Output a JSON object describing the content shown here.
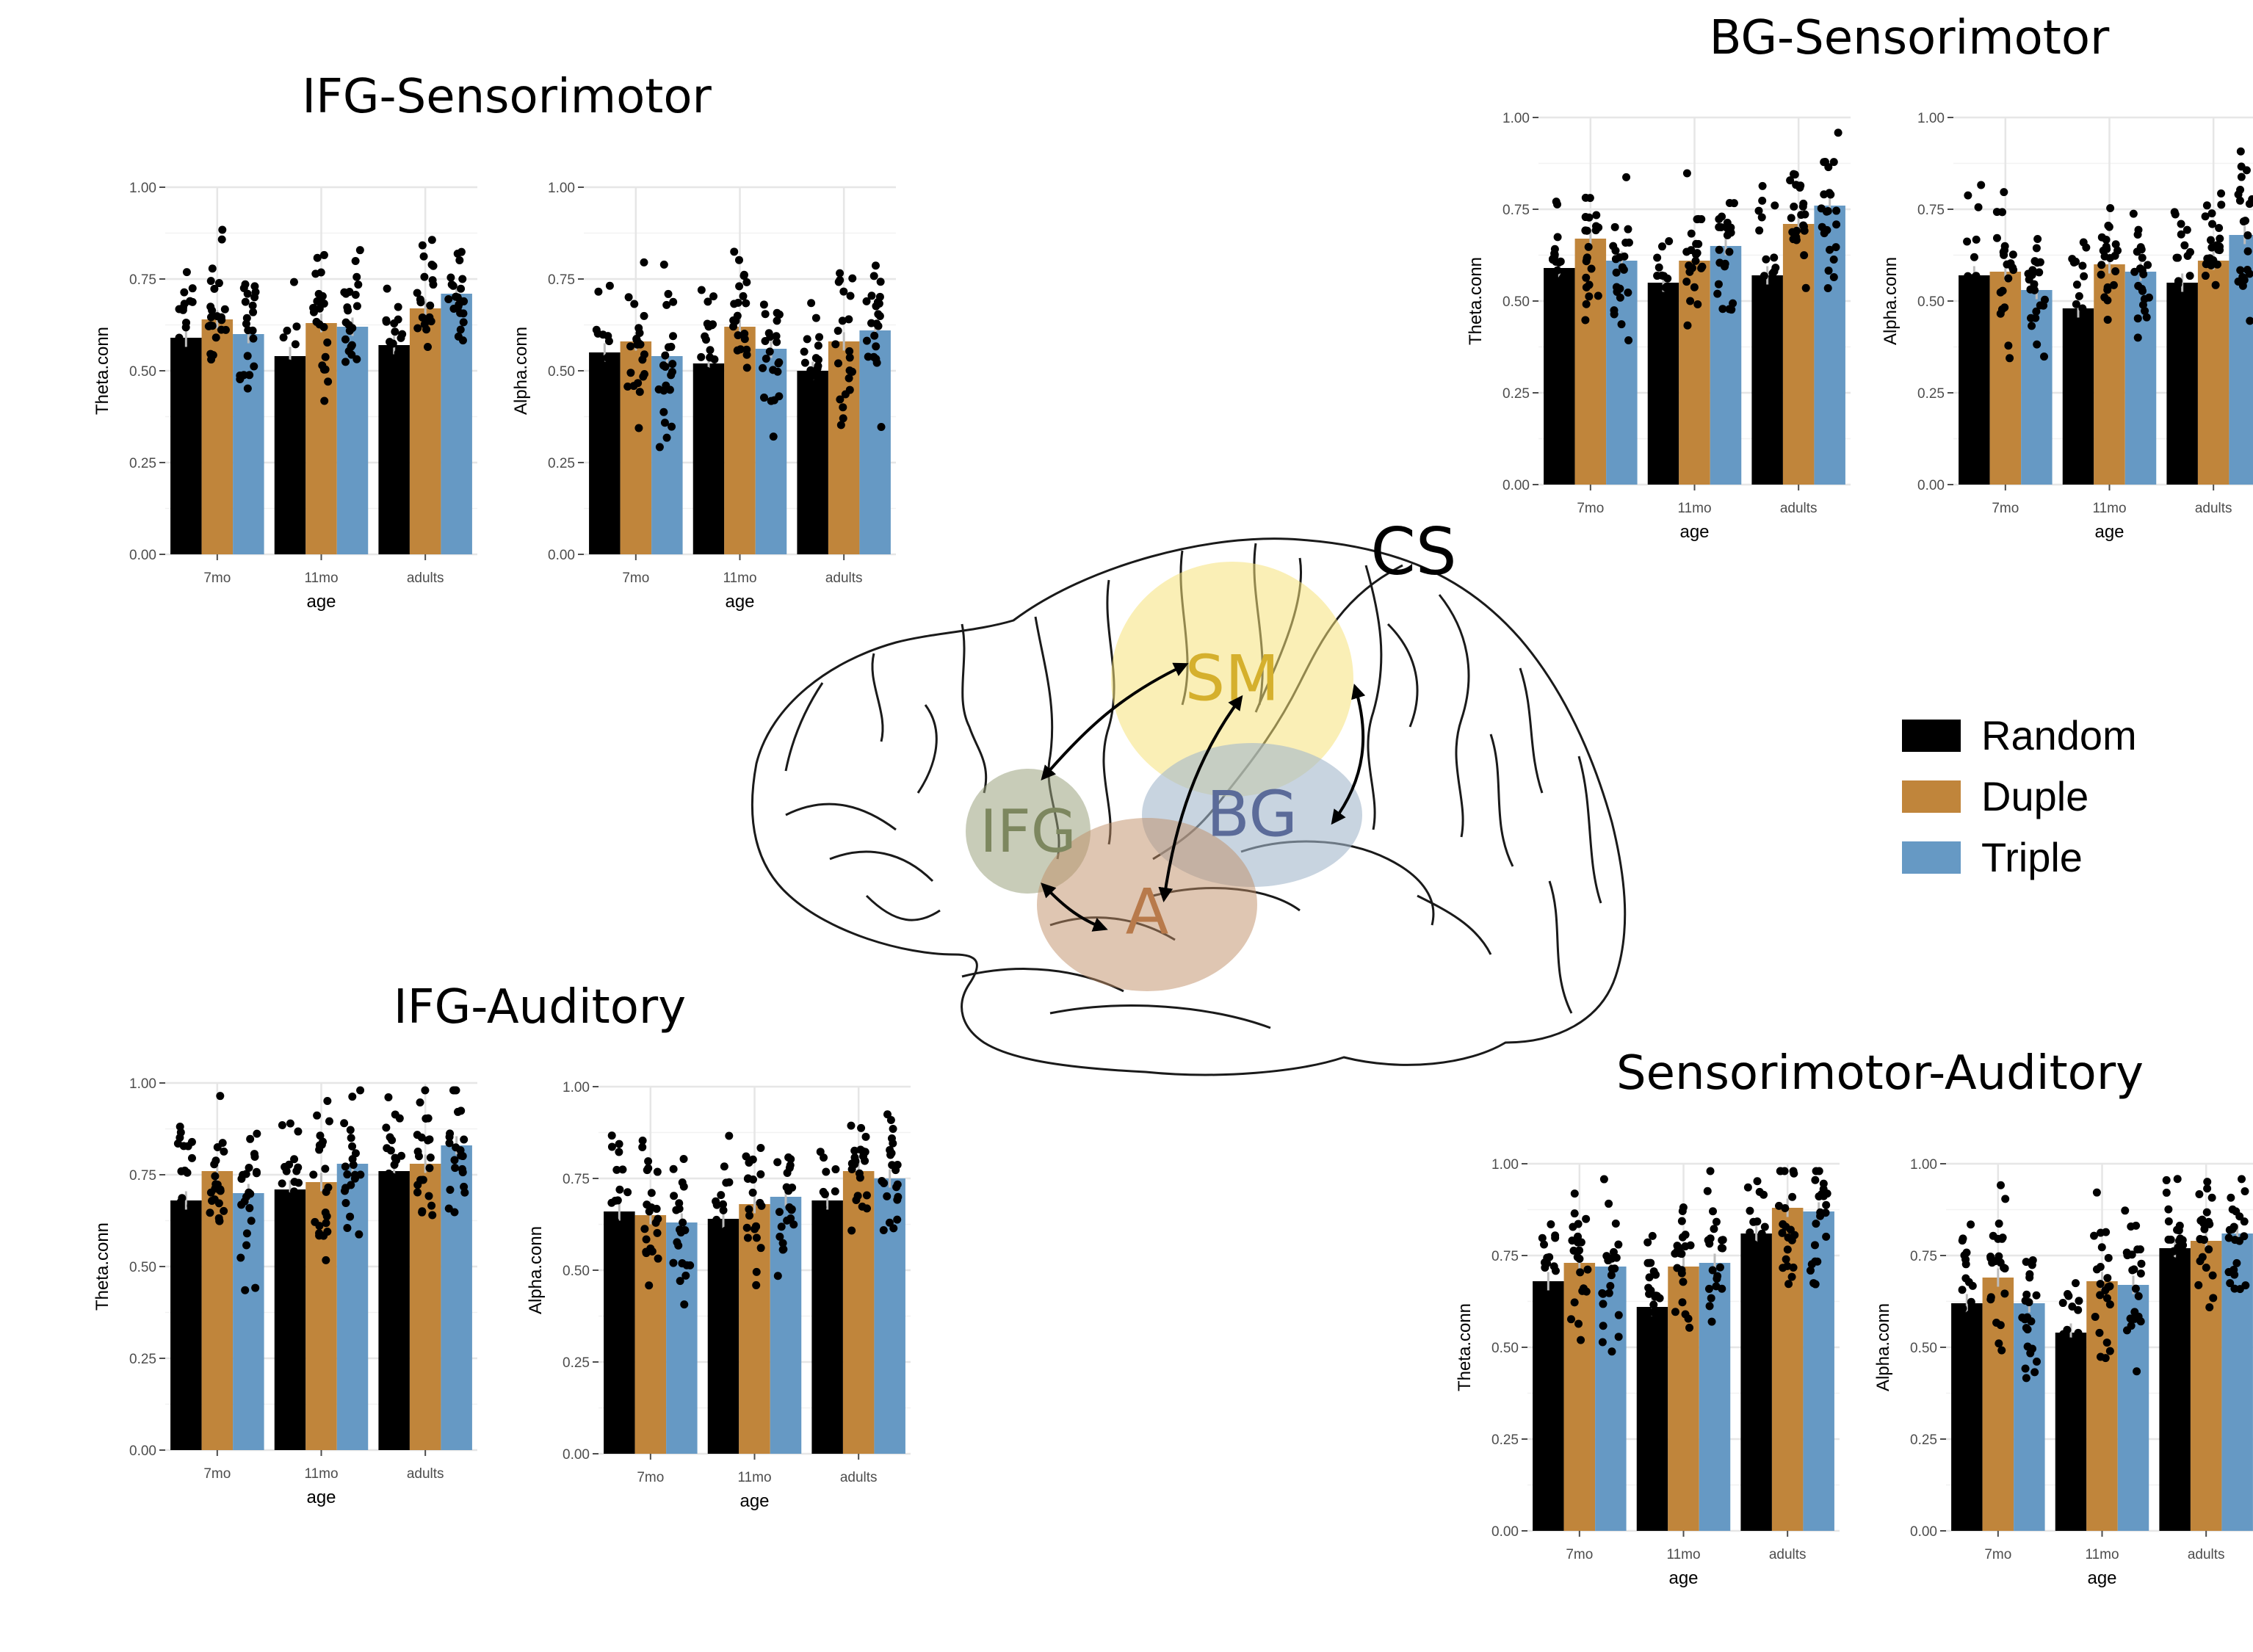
{
  "groups": [
    {
      "title": "IFG-Sensorimotor"
    },
    {
      "title": "BG-Sensorimotor"
    },
    {
      "title": "IFG-Auditory"
    },
    {
      "title": "Sensorimotor-Auditory"
    }
  ],
  "brain": {
    "cs_label": "CS",
    "regions": {
      "sm": "SM",
      "bg": "BG",
      "ifg": "IFG",
      "a": "A"
    }
  },
  "legend": [
    {
      "label": "Random",
      "color": "#000000"
    },
    {
      "label": "Duple",
      "color": "#c0853b"
    },
    {
      "label": "Triple",
      "color": "#6699c4"
    }
  ],
  "chart_data": [
    {
      "id": "ifgsm-theta",
      "group": "IFG-Sensorimotor",
      "type": "bar",
      "xlabel": "age",
      "ylabel": "Theta.conn",
      "categories": [
        "7mo",
        "11mo",
        "adults"
      ],
      "ylim": [
        0,
        1
      ],
      "yticks": [
        "0.00",
        "0.25",
        "0.50",
        "0.75",
        "1.00"
      ],
      "series": [
        {
          "name": "Random",
          "values": [
            0.59,
            0.54,
            0.57
          ]
        },
        {
          "name": "Duple",
          "values": [
            0.64,
            0.63,
            0.67
          ]
        },
        {
          "name": "Triple",
          "values": [
            0.6,
            0.62,
            0.71
          ]
        }
      ]
    },
    {
      "id": "ifgsm-alpha",
      "group": "IFG-Sensorimotor",
      "type": "bar",
      "xlabel": "age",
      "ylabel": "Alpha.conn",
      "categories": [
        "7mo",
        "11mo",
        "adults"
      ],
      "ylim": [
        0,
        1
      ],
      "yticks": [
        "0.00",
        "0.25",
        "0.50",
        "0.75",
        "1.00"
      ],
      "series": [
        {
          "name": "Random",
          "values": [
            0.55,
            0.52,
            0.5
          ]
        },
        {
          "name": "Duple",
          "values": [
            0.58,
            0.62,
            0.58
          ]
        },
        {
          "name": "Triple",
          "values": [
            0.54,
            0.56,
            0.61
          ]
        }
      ]
    },
    {
      "id": "bgsm-theta",
      "group": "BG-Sensorimotor",
      "type": "bar",
      "xlabel": "age",
      "ylabel": "Theta.conn",
      "categories": [
        "7mo",
        "11mo",
        "adults"
      ],
      "ylim": [
        0,
        1
      ],
      "yticks": [
        "0.00",
        "0.25",
        "0.50",
        "0.75",
        "1.00"
      ],
      "series": [
        {
          "name": "Random",
          "values": [
            0.59,
            0.55,
            0.57
          ]
        },
        {
          "name": "Duple",
          "values": [
            0.67,
            0.61,
            0.71
          ]
        },
        {
          "name": "Triple",
          "values": [
            0.61,
            0.65,
            0.76
          ]
        }
      ]
    },
    {
      "id": "bgsm-alpha",
      "group": "BG-Sensorimotor",
      "type": "bar",
      "xlabel": "age",
      "ylabel": "Alpha.conn",
      "categories": [
        "7mo",
        "11mo",
        "adults"
      ],
      "ylim": [
        0,
        1
      ],
      "yticks": [
        "0.00",
        "0.25",
        "0.50",
        "0.75",
        "1.00"
      ],
      "series": [
        {
          "name": "Random",
          "values": [
            0.57,
            0.48,
            0.55
          ]
        },
        {
          "name": "Duple",
          "values": [
            0.58,
            0.6,
            0.61
          ]
        },
        {
          "name": "Triple",
          "values": [
            0.53,
            0.58,
            0.68
          ]
        }
      ]
    },
    {
      "id": "ifga-theta",
      "group": "IFG-Auditory",
      "type": "bar",
      "xlabel": "age",
      "ylabel": "Theta.conn",
      "categories": [
        "7mo",
        "11mo",
        "adults"
      ],
      "ylim": [
        0,
        1
      ],
      "yticks": [
        "0.00",
        "0.25",
        "0.50",
        "0.75",
        "1.00"
      ],
      "series": [
        {
          "name": "Random",
          "values": [
            0.68,
            0.71,
            0.76
          ]
        },
        {
          "name": "Duple",
          "values": [
            0.76,
            0.73,
            0.78
          ]
        },
        {
          "name": "Triple",
          "values": [
            0.7,
            0.78,
            0.83
          ]
        }
      ]
    },
    {
      "id": "ifga-alpha",
      "group": "IFG-Auditory",
      "type": "bar",
      "xlabel": "age",
      "ylabel": "Alpha.conn",
      "categories": [
        "7mo",
        "11mo",
        "adults"
      ],
      "ylim": [
        0,
        1
      ],
      "yticks": [
        "0.00",
        "0.25",
        "0.50",
        "0.75",
        "1.00"
      ],
      "series": [
        {
          "name": "Random",
          "values": [
            0.66,
            0.64,
            0.69
          ]
        },
        {
          "name": "Duple",
          "values": [
            0.65,
            0.68,
            0.77
          ]
        },
        {
          "name": "Triple",
          "values": [
            0.63,
            0.7,
            0.75
          ]
        }
      ]
    },
    {
      "id": "sma-theta",
      "group": "Sensorimotor-Auditory",
      "type": "bar",
      "xlabel": "age",
      "ylabel": "Theta.conn",
      "categories": [
        "7mo",
        "11mo",
        "adults"
      ],
      "ylim": [
        0,
        1
      ],
      "yticks": [
        "0.00",
        "0.25",
        "0.50",
        "0.75",
        "1.00"
      ],
      "series": [
        {
          "name": "Random",
          "values": [
            0.68,
            0.61,
            0.81
          ]
        },
        {
          "name": "Duple",
          "values": [
            0.73,
            0.72,
            0.88
          ]
        },
        {
          "name": "Triple",
          "values": [
            0.72,
            0.73,
            0.87
          ]
        }
      ]
    },
    {
      "id": "sma-alpha",
      "group": "Sensorimotor-Auditory",
      "type": "bar",
      "xlabel": "age",
      "ylabel": "Alpha.conn",
      "categories": [
        "7mo",
        "11mo",
        "adults"
      ],
      "ylim": [
        0,
        1
      ],
      "yticks": [
        "0.00",
        "0.25",
        "0.50",
        "0.75",
        "1.00"
      ],
      "series": [
        {
          "name": "Random",
          "values": [
            0.62,
            0.54,
            0.77
          ]
        },
        {
          "name": "Duple",
          "values": [
            0.69,
            0.68,
            0.79
          ]
        },
        {
          "name": "Triple",
          "values": [
            0.62,
            0.67,
            0.81
          ]
        }
      ]
    }
  ]
}
